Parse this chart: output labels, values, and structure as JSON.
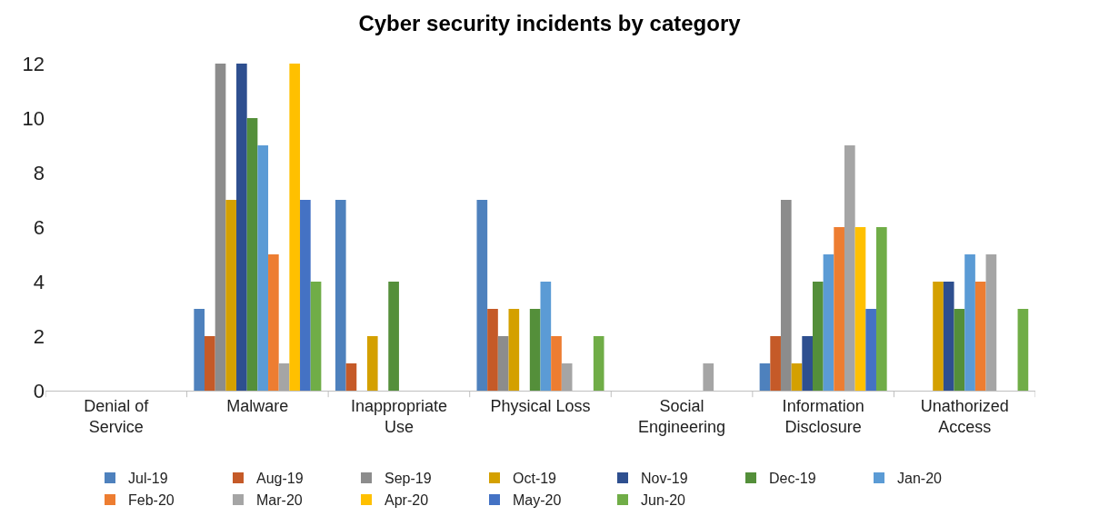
{
  "chart_data": {
    "type": "bar",
    "title": "Cyber security incidents by category",
    "categories": [
      "Denial of Service",
      "Malware",
      "Inappropriate Use",
      "Physical Loss",
      "Social Engineering",
      "Information Disclosure",
      "Unathorized Access"
    ],
    "series": [
      {
        "name": "Jul-19",
        "color": "#4e81bd",
        "values": [
          null,
          3,
          7,
          7,
          null,
          1,
          null
        ]
      },
      {
        "name": "Aug-19",
        "color": "#c55a28",
        "values": [
          null,
          2,
          1,
          3,
          null,
          2,
          null
        ]
      },
      {
        "name": "Sep-19",
        "color": "#8c8c8c",
        "values": [
          null,
          12,
          null,
          2,
          null,
          7,
          null
        ]
      },
      {
        "name": "Oct-19",
        "color": "#d4a000",
        "values": [
          null,
          7,
          2,
          3,
          null,
          1,
          4
        ]
      },
      {
        "name": "Nov-19",
        "color": "#2e4f8f",
        "values": [
          null,
          12,
          null,
          null,
          null,
          2,
          4
        ]
      },
      {
        "name": "Dec-19",
        "color": "#548f3a",
        "values": [
          null,
          10,
          4,
          3,
          null,
          4,
          3
        ]
      },
      {
        "name": "Jan-20",
        "color": "#5b9bd5",
        "values": [
          null,
          9,
          null,
          4,
          null,
          5,
          5
        ]
      },
      {
        "name": "Feb-20",
        "color": "#ed7d31",
        "values": [
          null,
          5,
          null,
          2,
          null,
          6,
          4
        ]
      },
      {
        "name": "Mar-20",
        "color": "#a5a5a5",
        "values": [
          null,
          1,
          null,
          1,
          1,
          9,
          5
        ]
      },
      {
        "name": "Apr-20",
        "color": "#ffc000",
        "values": [
          null,
          12,
          null,
          null,
          null,
          6,
          null
        ]
      },
      {
        "name": "May-20",
        "color": "#4472c4",
        "values": [
          null,
          7,
          null,
          null,
          null,
          3,
          null
        ]
      },
      {
        "name": "Jun-20",
        "color": "#70ad47",
        "values": [
          null,
          4,
          null,
          2,
          null,
          6,
          3
        ]
      }
    ],
    "ylim": [
      0,
      12
    ],
    "yticks": [
      0,
      2,
      4,
      6,
      8,
      10,
      12
    ],
    "legend": "bottom"
  }
}
